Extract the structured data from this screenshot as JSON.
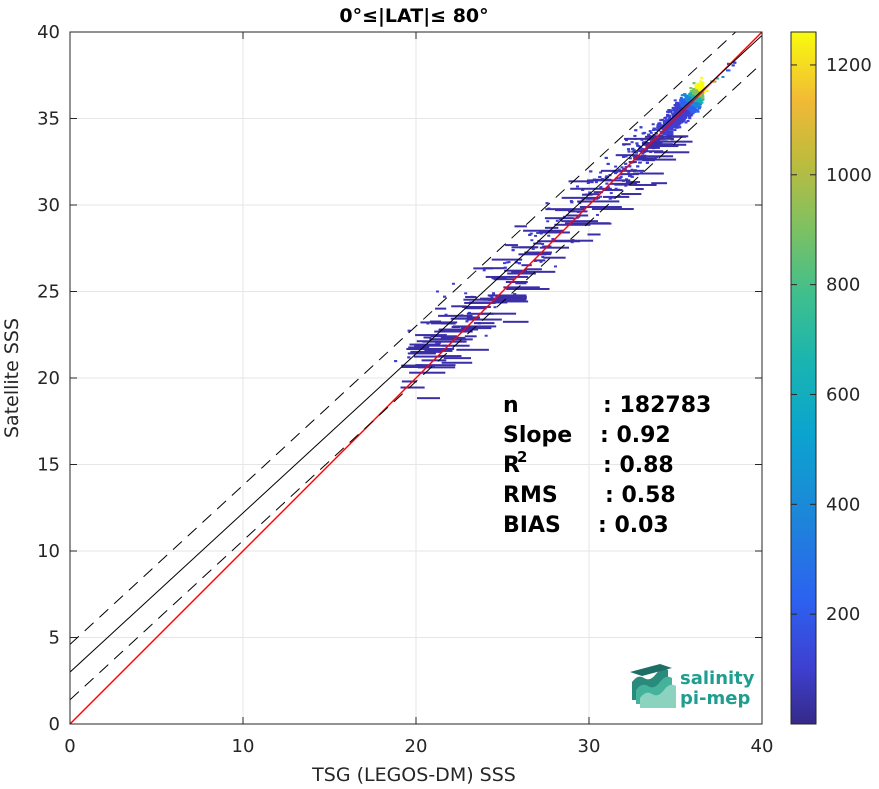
{
  "chart_data": {
    "type": "scatter",
    "title": "0°≤|LAT|≤ 80°",
    "xlabel": "TSG (LEGOS-DM) SSS",
    "ylabel": "Satellite SSS",
    "xlim": [
      0,
      40
    ],
    "ylim": [
      0,
      40
    ],
    "xticks": [
      "0",
      "10",
      "20",
      "30",
      "40"
    ],
    "yticks": [
      "0",
      "5",
      "10",
      "15",
      "20",
      "25",
      "30",
      "35",
      "40"
    ],
    "grid": true,
    "density_colormap": "parula",
    "colorbar": {
      "range": [
        0,
        1260
      ],
      "ticks": [
        "200",
        "400",
        "600",
        "800",
        "1000",
        "1200"
      ]
    },
    "lines": [
      {
        "kind": "identity",
        "color": "#ff0000",
        "slope": 1.0,
        "intercept": 0.0
      },
      {
        "kind": "fit",
        "color": "#000000",
        "slope": 0.92,
        "intercept": 3.0
      },
      {
        "kind": "fit-upper",
        "color": "#000000",
        "dash": true,
        "slope": 0.92,
        "intercept": 4.6
      },
      {
        "kind": "fit-lower",
        "color": "#000000",
        "dash": true,
        "slope": 0.92,
        "intercept": 1.4
      }
    ],
    "density_cloud": {
      "core": {
        "x": 36.5,
        "y": 37.0
      },
      "extent_x": [
        18.5,
        38.5
      ],
      "extent_y": [
        21.0,
        39.5
      ]
    },
    "stats": [
      {
        "label": "n",
        "value": ": 182783"
      },
      {
        "label": "Slope",
        "value": ": 0.92"
      },
      {
        "label": "R",
        "sup": "2",
        "value": ": 0.88"
      },
      {
        "label": "RMS",
        "value": ": 0.58"
      },
      {
        "label": "BIAS",
        "value": ": 0.03"
      }
    ]
  },
  "logo": {
    "line1": "salinity",
    "line2": "pi-mep"
  }
}
